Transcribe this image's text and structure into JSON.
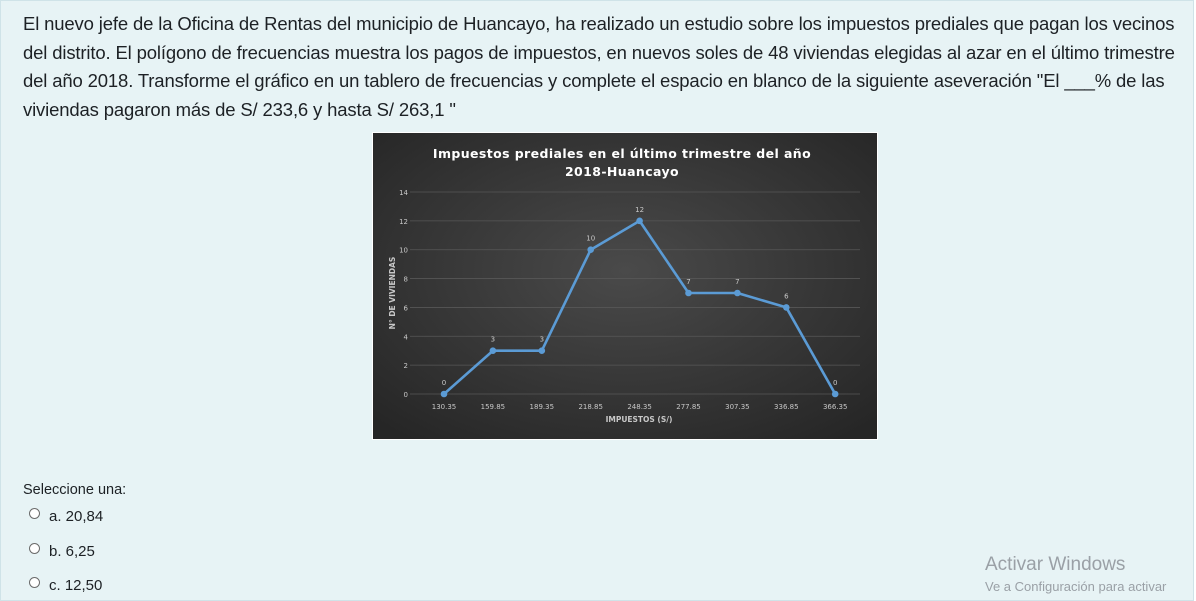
{
  "question": {
    "text": "El nuevo jefe de la Oficina de Rentas del municipio de Huancayo,  ha realizado un estudio sobre los impuestos prediales que pagan los vecinos del distrito. El polígono de frecuencias muestra los pagos de impuestos, en nuevos soles de 48 viviendas elegidas al azar en el último trimestre del año 2018. Transforme el gráfico en un tablero de frecuencias y complete el espacio en blanco de la siguiente aseveración \"El ___% de las viviendas pagaron más de S/ 233,6 y hasta S/ 263,1 \""
  },
  "chart_data": {
    "type": "line",
    "title": "Impuestos prediales en el último trimestre del año 2018-Huancayo",
    "title_lines": [
      "Impuestos prediales en el último trimestre del año",
      "2018-Huancayo"
    ],
    "xlabel": "IMPUESTOS (S/)",
    "ylabel": "N° DE VIVIENDAS",
    "categories": [
      "130.35",
      "159.85",
      "189.35",
      "218.85",
      "248.35",
      "277.85",
      "307.35",
      "336.85",
      "366.35"
    ],
    "series": [
      {
        "values": [
          0,
          3,
          3,
          10,
          12,
          7,
          7,
          6,
          0
        ]
      }
    ],
    "yticks": [
      0,
      2,
      4,
      6,
      8,
      10,
      12,
      14
    ],
    "ylim": [
      0,
      14
    ],
    "grid": true,
    "colors": {
      "background": "#3a3a3a",
      "line": "#5b9bd5",
      "text": "#ffffff",
      "tick": "#c8c8c8"
    }
  },
  "answers": {
    "prompt": "Seleccione una:",
    "options": [
      {
        "label": "a. 20,84"
      },
      {
        "label": "b. 6,25"
      },
      {
        "label": "c. 12,50"
      }
    ]
  },
  "watermark": {
    "title": "Activar Windows",
    "subtitle": "Ve a Configuración para activar"
  }
}
